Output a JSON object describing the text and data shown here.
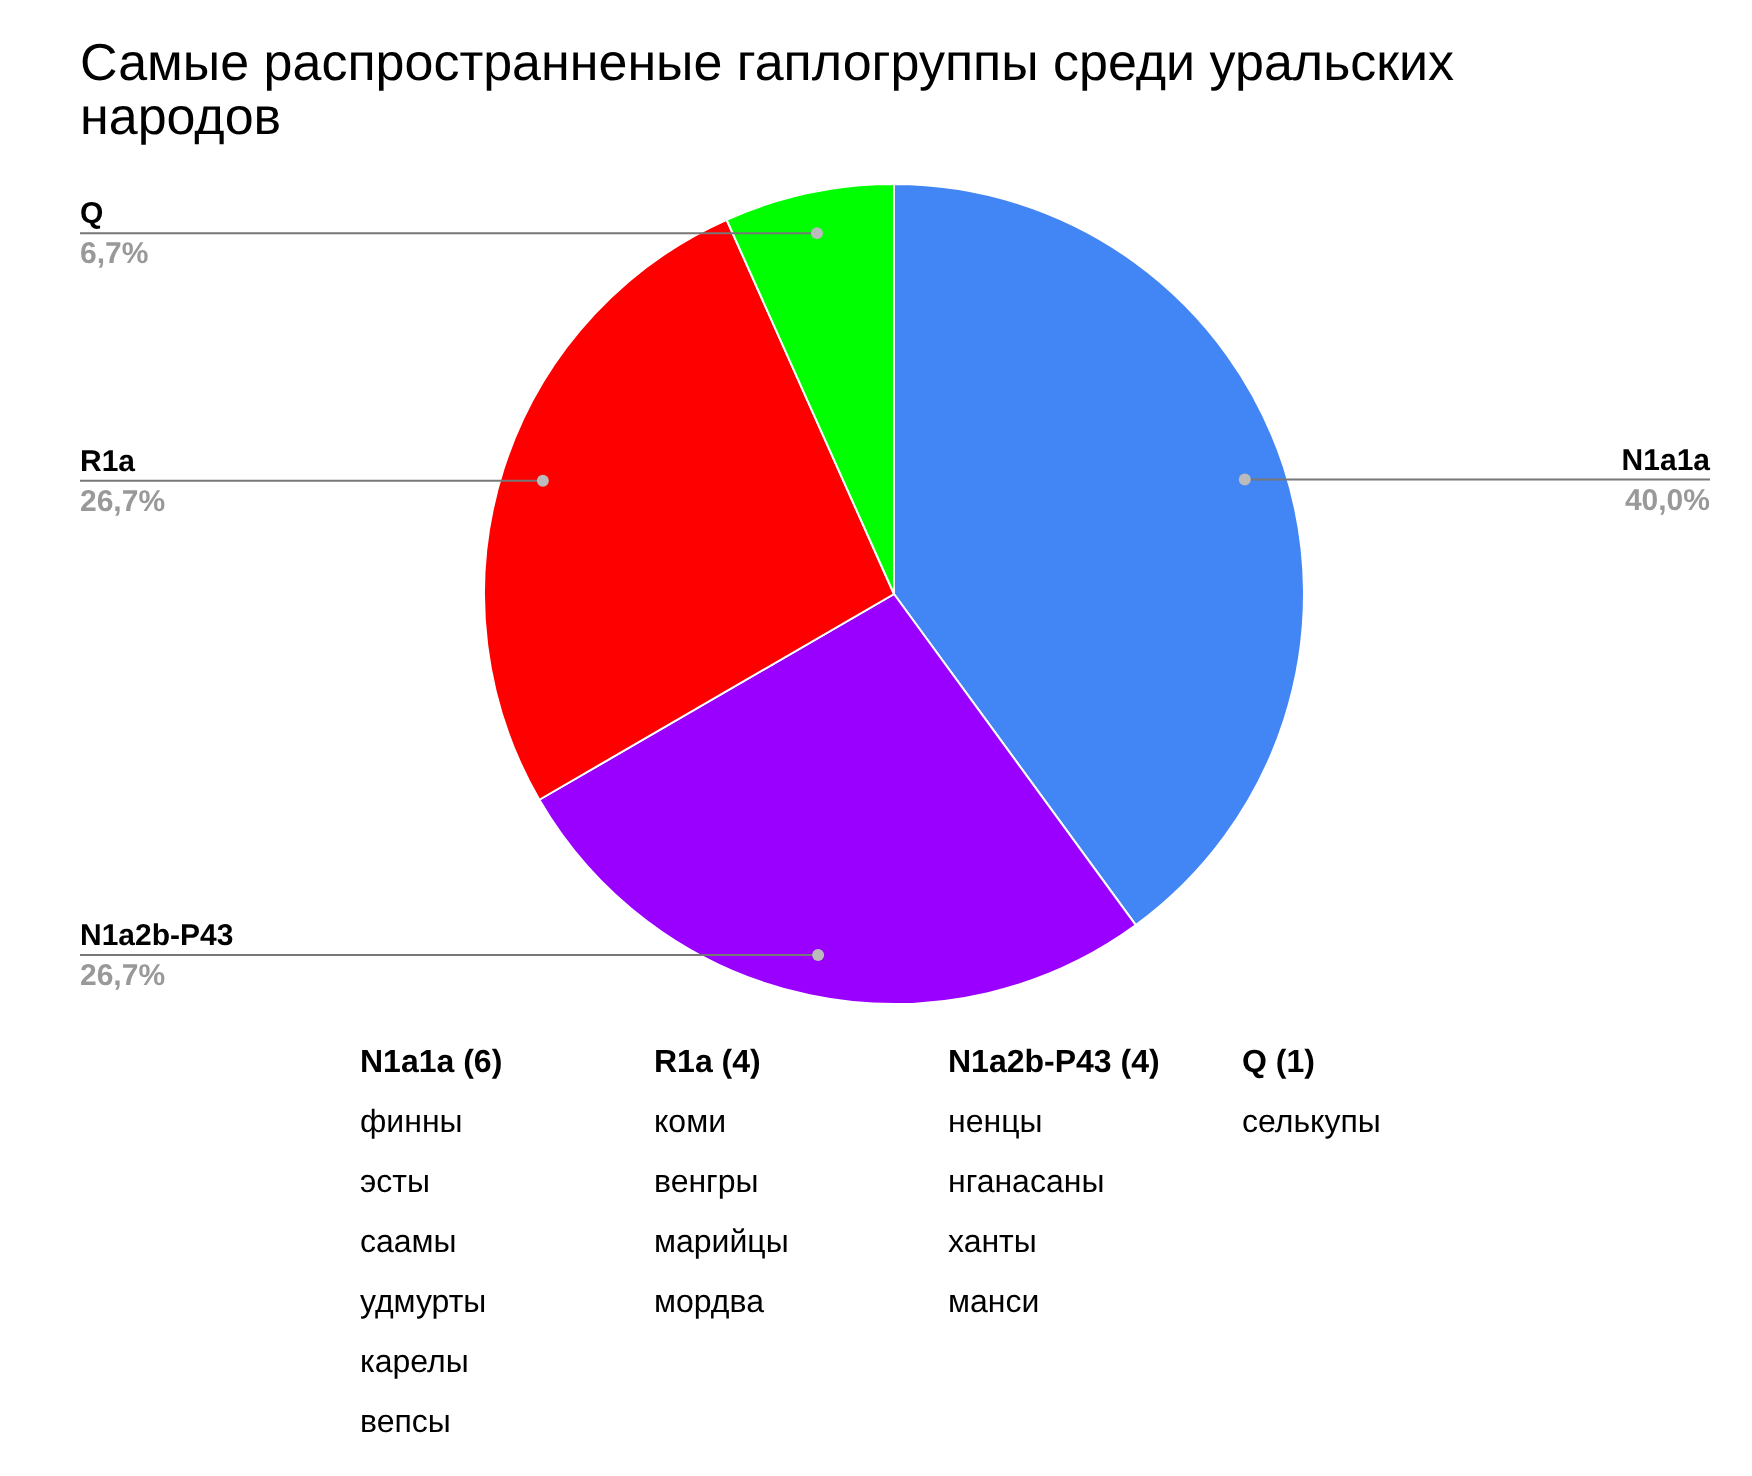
{
  "chart_data": [
    {
      "type": "pie",
      "title": "Самые распространненые гаплогруппы среди уральских народов",
      "categories": [
        "N1a1a",
        "N1a2b-P43",
        "R1a",
        "Q"
      ],
      "values": [
        40.0,
        26.7,
        26.7,
        6.7
      ],
      "colors": [
        "#4285f4",
        "#9900ff",
        "#ff0000",
        "#00ff00"
      ],
      "value_labels": [
        "40,0%",
        "26,7%",
        "26,7%",
        "6,7%"
      ],
      "legend": false
    },
    {
      "type": "other",
      "annotations": [
        "N1a1a (6)\nфинны\nэсты\nсаамы\nудмурты\nкарелы\nвепсы",
        "R1a (4)\nкоми\nвенгры\nмарийцы\nмордва",
        "N1a2b-P43 (4)\nненцы\nнганасаны\nханты\nманси",
        "Q (1)\nселькупы"
      ]
    }
  ]
}
